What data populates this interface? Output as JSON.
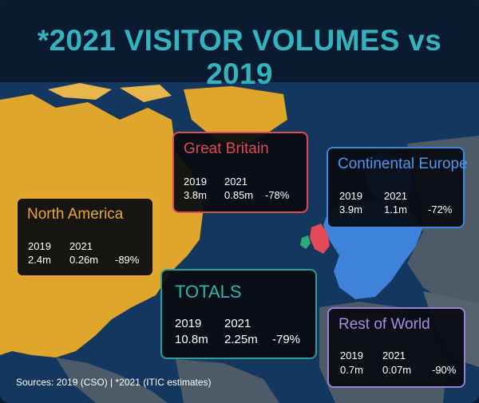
{
  "title": "*2021 VISITOR VOLUMES vs 2019",
  "colors": {
    "title": "#33b3bd",
    "north_america": "#e8a830",
    "great_britain": "#e04955",
    "continental_europe": "#3b86de",
    "totals": "#2b9e9a",
    "rest_of_world": "#9a7fd3"
  },
  "column_headers": {
    "year_a": "2019",
    "year_b": "2021"
  },
  "regions": {
    "great_britain": {
      "name": "Great Britain",
      "v2019": "3.8m",
      "v2021": "0.85m",
      "change": "-78%"
    },
    "continental_europe": {
      "name": "Continental Europe",
      "v2019": "3.9m",
      "v2021": "1.1m",
      "change": "-72%"
    },
    "north_america": {
      "name": "North America",
      "v2019": "2.4m",
      "v2021": "0.26m",
      "change": "-89%"
    },
    "totals": {
      "name": "TOTALS",
      "v2019": "10.8m",
      "v2021": "2.25m",
      "change": "-79%"
    },
    "rest_of_world": {
      "name": "Rest of World",
      "v2019": "0.7m",
      "v2021": "0.07m",
      "change": "-90%"
    }
  },
  "source": "Sources: 2019 (CSO) | *2021 (ITIC estimates)"
}
